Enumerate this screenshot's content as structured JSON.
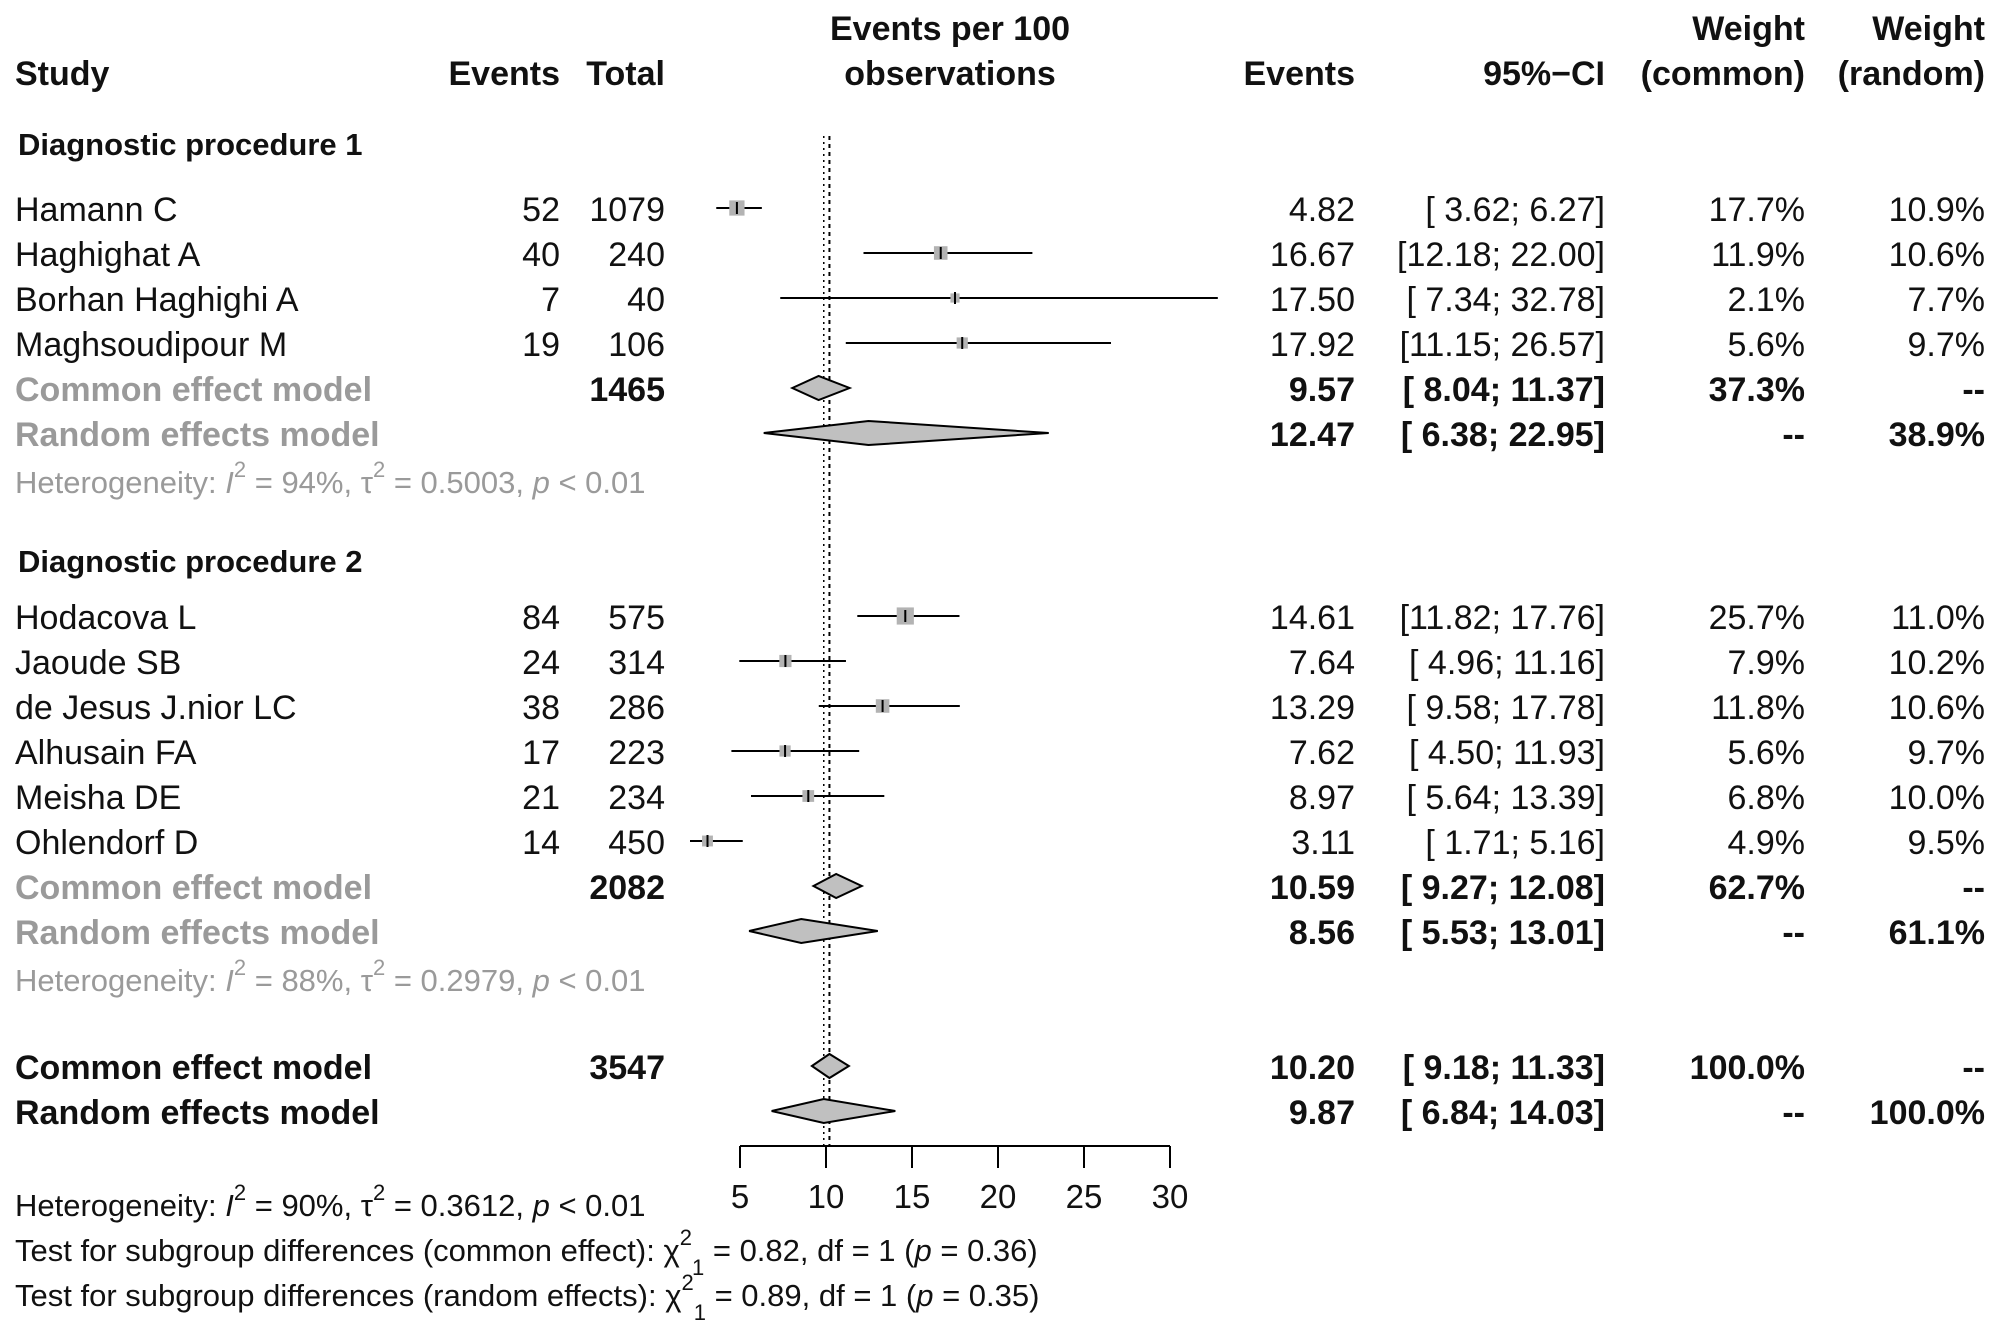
{
  "headers": {
    "study": "Study",
    "events": "Events",
    "total": "Total",
    "plot_line1": "Events per 100",
    "plot_line2": "observations",
    "events2": "Events",
    "ci": "95%−CI",
    "weight": "Weight",
    "weight_common": "(common)",
    "weight_random": "(random)"
  },
  "colors": {
    "box": "#b3b3b3",
    "diamond": "#c0c0c0",
    "grey_text": "#9a9a9a"
  },
  "groups": [
    {
      "label": "Diagnostic procedure 1",
      "studies": [
        {
          "name": "Hamann C",
          "events": "52",
          "total": "1079",
          "est": "4.82",
          "ci": "[ 3.62;  6.27]",
          "w_common": "17.7%",
          "w_random": "10.9%"
        },
        {
          "name": "Haghighat A",
          "events": "40",
          "total": "240",
          "est": "16.67",
          "ci": "[12.18; 22.00]",
          "w_common": "11.9%",
          "w_random": "10.6%"
        },
        {
          "name": "Borhan Haghighi A",
          "events": "7",
          "total": "40",
          "est": "17.50",
          "ci": "[ 7.34; 32.78]",
          "w_common": "2.1%",
          "w_random": "7.7%"
        },
        {
          "name": "Maghsoudipour M",
          "events": "19",
          "total": "106",
          "est": "17.92",
          "ci": "[11.15; 26.57]",
          "w_common": "5.6%",
          "w_random": "9.7%"
        }
      ],
      "common": {
        "label": "Common effect model",
        "total": "1465",
        "est": "9.57",
        "ci": "[ 8.04; 11.37]",
        "w_common": "37.3%",
        "w_random": "--"
      },
      "random": {
        "label": "Random effects model",
        "est": "12.47",
        "ci": "[ 6.38; 22.95]",
        "w_common": "--",
        "w_random": "38.9%"
      },
      "heterogeneity": {
        "prefix": "Heterogeneity: ",
        "I_sym": "I",
        "sup2": "2",
        "i2": " = 94%, ",
        "tau_sym": "τ",
        "tau2": " = 0.5003, ",
        "p_sym": "p",
        "p_val": " < 0.01"
      }
    },
    {
      "label": "Diagnostic procedure 2",
      "studies": [
        {
          "name": "Hodacova L",
          "events": "84",
          "total": "575",
          "est": "14.61",
          "ci": "[11.82; 17.76]",
          "w_common": "25.7%",
          "w_random": "11.0%"
        },
        {
          "name": "Jaoude SB",
          "events": "24",
          "total": "314",
          "est": "7.64",
          "ci": "[ 4.96; 11.16]",
          "w_common": "7.9%",
          "w_random": "10.2%"
        },
        {
          "name": "de Jesus J.nior LC",
          "events": "38",
          "total": "286",
          "est": "13.29",
          "ci": "[ 9.58; 17.78]",
          "w_common": "11.8%",
          "w_random": "10.6%"
        },
        {
          "name": "Alhusain FA",
          "events": "17",
          "total": "223",
          "est": "7.62",
          "ci": "[ 4.50; 11.93]",
          "w_common": "5.6%",
          "w_random": "9.7%"
        },
        {
          "name": "Meisha DE",
          "events": "21",
          "total": "234",
          "est": "8.97",
          "ci": "[ 5.64; 13.39]",
          "w_common": "6.8%",
          "w_random": "10.0%"
        },
        {
          "name": "Ohlendorf D",
          "events": "14",
          "total": "450",
          "est": "3.11",
          "ci": "[ 1.71;  5.16]",
          "w_common": "4.9%",
          "w_random": "9.5%"
        }
      ],
      "common": {
        "label": "Common effect model",
        "total": "2082",
        "est": "10.59",
        "ci": "[ 9.27; 12.08]",
        "w_common": "62.7%",
        "w_random": "--"
      },
      "random": {
        "label": "Random effects model",
        "est": "8.56",
        "ci": "[ 5.53; 13.01]",
        "w_common": "--",
        "w_random": "61.1%"
      },
      "heterogeneity": {
        "prefix": "Heterogeneity: ",
        "I_sym": "I",
        "sup2": "2",
        "i2": " = 88%, ",
        "tau_sym": "τ",
        "tau2": " = 0.2979, ",
        "p_sym": "p",
        "p_val": " < 0.01"
      }
    }
  ],
  "overall": {
    "common": {
      "label": "Common effect model",
      "total": "3547",
      "est": "10.20",
      "ci": "[ 9.18; 11.33]",
      "w_common": "100.0%",
      "w_random": "--"
    },
    "random": {
      "label": "Random effects model",
      "est": "9.87",
      "ci": "[ 6.84; 14.03]",
      "w_common": "--",
      "w_random": "100.0%"
    },
    "heterogeneity": {
      "prefix": "Heterogeneity: ",
      "I_sym": "I",
      "sup2": "2",
      "i2": " = 90%, ",
      "tau_sym": "τ",
      "tau2": " = 0.3612, ",
      "p_sym": "p",
      "p_val": " < 0.01"
    },
    "test_common": {
      "prefix": "Test for subgroup differences (common effect): ",
      "chi_sym": "χ",
      "sup": "2",
      "sub": "1",
      "rest1": " = 0.82, df = 1 (",
      "p_sym": "p",
      "rest2": " = 0.36)"
    },
    "test_random": {
      "prefix": "Test for subgroup differences (random effects): ",
      "chi_sym": "χ",
      "sup": "2",
      "sub": "1",
      "rest1": " = 0.89, df = 1 (",
      "p_sym": "p",
      "rest2": " = 0.35)"
    }
  },
  "chart_data": {
    "type": "forest",
    "xlabel": "Events per 100 observations",
    "xlim": [
      5,
      30
    ],
    "ticks": [
      "5",
      "10",
      "15",
      "20",
      "25",
      "30"
    ],
    "reference_line": 10.2,
    "random_reference_line": 9.87,
    "rows": [
      {
        "kind": "study",
        "name": "Hamann C",
        "est": 4.82,
        "lo": 3.62,
        "hi": 6.27,
        "weight": 17.7
      },
      {
        "kind": "study",
        "name": "Haghighat A",
        "est": 16.67,
        "lo": 12.18,
        "hi": 22.0,
        "weight": 11.9
      },
      {
        "kind": "study",
        "name": "Borhan Haghighi A",
        "est": 17.5,
        "lo": 7.34,
        "hi": 32.78,
        "weight": 2.1
      },
      {
        "kind": "study",
        "name": "Maghsoudipour M",
        "est": 17.92,
        "lo": 11.15,
        "hi": 26.57,
        "weight": 5.6
      },
      {
        "kind": "diamond",
        "name": "Common effect model (group 1)",
        "est": 9.57,
        "lo": 8.04,
        "hi": 11.37
      },
      {
        "kind": "diamond",
        "name": "Random effects model (group 1)",
        "est": 12.47,
        "lo": 6.38,
        "hi": 22.95
      },
      {
        "kind": "study",
        "name": "Hodacova L",
        "est": 14.61,
        "lo": 11.82,
        "hi": 17.76,
        "weight": 25.7
      },
      {
        "kind": "study",
        "name": "Jaoude SB",
        "est": 7.64,
        "lo": 4.96,
        "hi": 11.16,
        "weight": 7.9
      },
      {
        "kind": "study",
        "name": "de Jesus J.nior LC",
        "est": 13.29,
        "lo": 9.58,
        "hi": 17.78,
        "weight": 11.8
      },
      {
        "kind": "study",
        "name": "Alhusain FA",
        "est": 7.62,
        "lo": 4.5,
        "hi": 11.93,
        "weight": 5.6
      },
      {
        "kind": "study",
        "name": "Meisha DE",
        "est": 8.97,
        "lo": 5.64,
        "hi": 13.39,
        "weight": 6.8
      },
      {
        "kind": "study",
        "name": "Ohlendorf D",
        "est": 3.11,
        "lo": 1.71,
        "hi": 5.16,
        "weight": 4.9
      },
      {
        "kind": "diamond",
        "name": "Common effect model (group 2)",
        "est": 10.59,
        "lo": 9.27,
        "hi": 12.08
      },
      {
        "kind": "diamond",
        "name": "Random effects model (group 2)",
        "est": 8.56,
        "lo": 5.53,
        "hi": 13.01
      },
      {
        "kind": "diamond",
        "name": "Common effect model (overall)",
        "est": 10.2,
        "lo": 9.18,
        "hi": 11.33
      },
      {
        "kind": "diamond",
        "name": "Random effects model (overall)",
        "est": 9.87,
        "lo": 6.84,
        "hi": 14.03
      }
    ]
  }
}
